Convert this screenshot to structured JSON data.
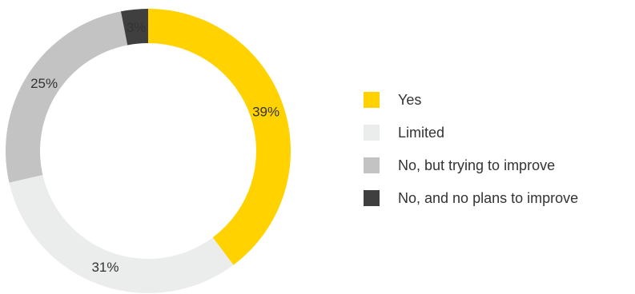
{
  "chart_data": {
    "type": "pie",
    "donut": true,
    "start_angle_deg": 0,
    "direction": "clockwise",
    "categories": [
      "Yes",
      "Limited",
      "No, but trying to improve",
      "No, and no plans to improve"
    ],
    "values": [
      39,
      31,
      25,
      3
    ],
    "labels": [
      "39%",
      "31%",
      "25%",
      "3%"
    ],
    "colors": [
      "#FFD200",
      "#EBECEC",
      "#C3C3C3",
      "#3F3F40"
    ],
    "legend": "right"
  }
}
